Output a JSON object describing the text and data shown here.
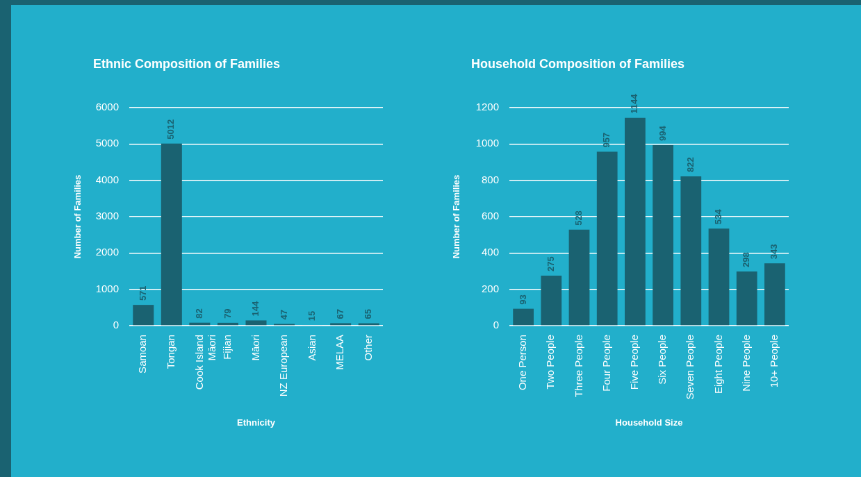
{
  "chart_data": [
    {
      "type": "bar",
      "title": "Ethnic Composition of Families",
      "xlabel": "Ethnicity",
      "ylabel": "Number of Families",
      "categories": [
        "Samoan",
        "Tongan",
        "Cook Island Māori",
        "Fijian",
        "Māori",
        "NZ European",
        "Asian",
        "MELAA",
        "Other"
      ],
      "values": [
        571,
        5012,
        82,
        79,
        144,
        47,
        15,
        67,
        65
      ],
      "color": "#1a6271",
      "ylim": [
        0,
        6000
      ],
      "yticks": [
        0,
        1000,
        2000,
        3000,
        4000,
        5000,
        6000
      ],
      "grid": "y",
      "data_labels": true
    },
    {
      "type": "bar",
      "title": "Household Composition of Families",
      "xlabel": "Household Size",
      "ylabel": "Number of Families",
      "categories": [
        "One Person",
        "Two People",
        "Three People",
        "Four People",
        "Five People",
        "Six People",
        "Seven People",
        "Eight People",
        "Nine People",
        "10+ People"
      ],
      "values": [
        93,
        275,
        528,
        957,
        1144,
        994,
        822,
        534,
        298,
        343
      ],
      "color": "#1a6271",
      "ylim": [
        0,
        1200
      ],
      "yticks": [
        0,
        200,
        400,
        600,
        800,
        1000,
        1200
      ],
      "grid": "y",
      "data_labels": true
    }
  ]
}
